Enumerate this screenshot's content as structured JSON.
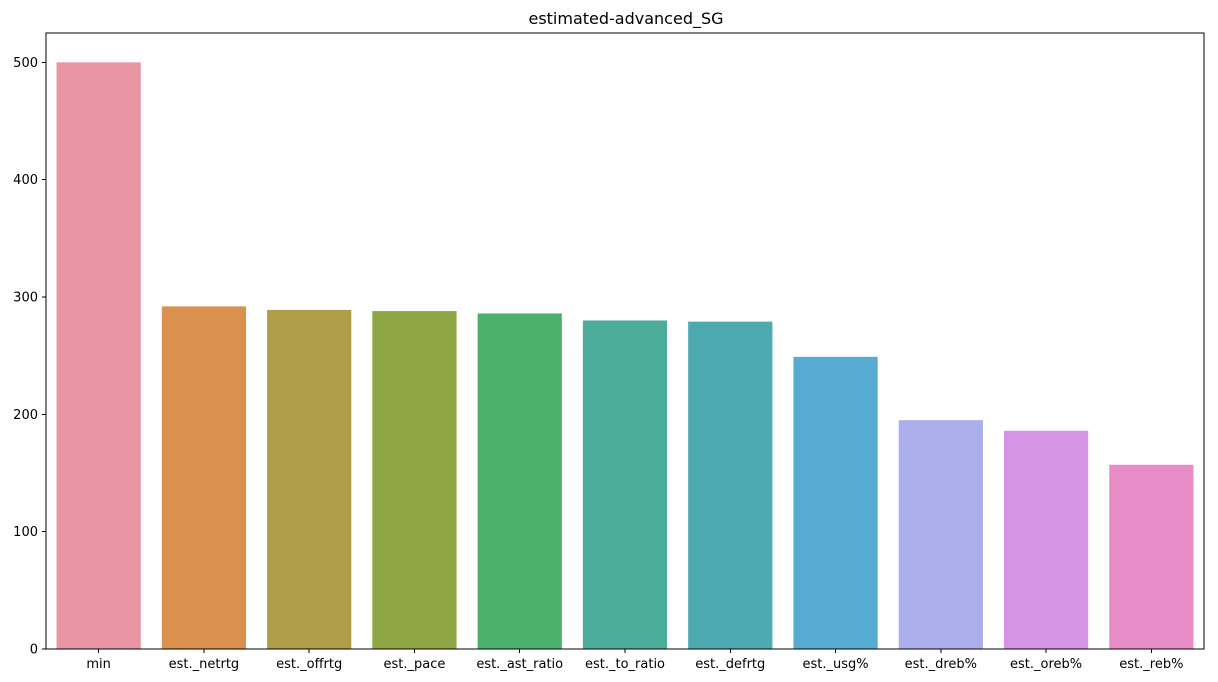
{
  "chart_data": {
    "type": "bar",
    "title": "estimated-advanced_SG",
    "xlabel": "",
    "ylabel": "",
    "categories": [
      "min",
      "est._netrtg",
      "est._offrtg",
      "est._pace",
      "est._ast_ratio",
      "est._to_ratio",
      "est._defrtg",
      "est._usg%",
      "est._dreb%",
      "est._oreb%",
      "est._reb%"
    ],
    "values": [
      500,
      292,
      289,
      288,
      286,
      280,
      279,
      249,
      195,
      186,
      157
    ],
    "colors": [
      "#e995a3",
      "#da914e",
      "#b09d48",
      "#8fa645",
      "#4bb06a",
      "#4bac9a",
      "#4daab0",
      "#56abd2",
      "#aaaeea",
      "#d594e6",
      "#e88cc7"
    ],
    "ylim": [
      0,
      525
    ],
    "yticks": [
      0,
      100,
      200,
      300,
      400,
      500
    ],
    "grid": false,
    "legend": "none"
  }
}
